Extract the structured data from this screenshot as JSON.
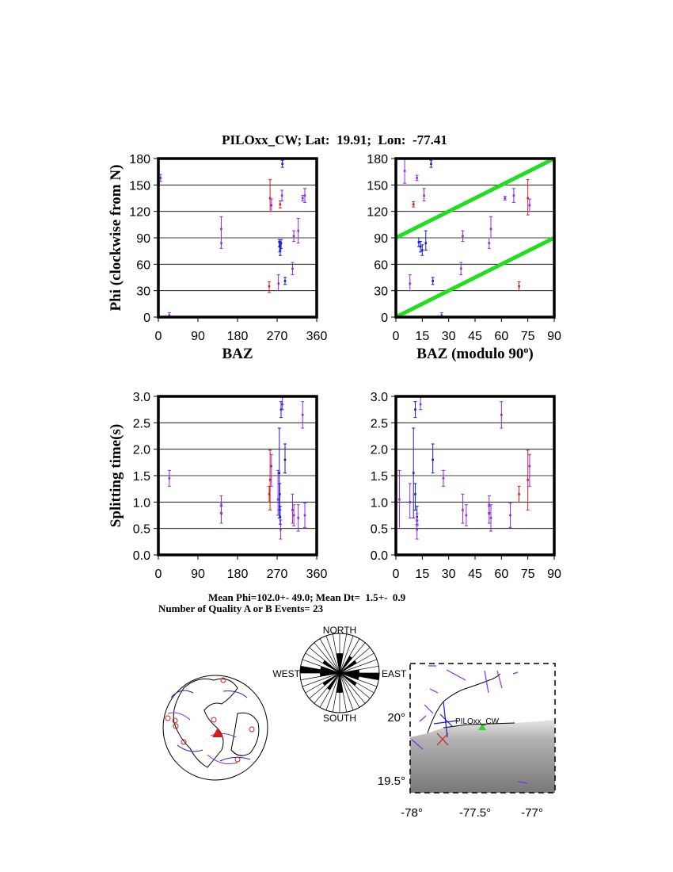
{
  "title": "PILOxx_CW; Lat:  19.91;  Lon:  -77.41",
  "stats": {
    "mean_line": "Mean Phi=102.0+- 49.0; Mean Dt=  1.5+-  0.9",
    "count_line": "Number of Quality A or B Events= 23"
  },
  "colors": {
    "purple": "#8a2be2",
    "blue": "#1a1acd",
    "red": "#d21e1e",
    "green": "#22dd22",
    "grid": "#000000"
  },
  "chart_data": [
    {
      "id": "phi_baz",
      "type": "scatter",
      "xlabel": "BAZ",
      "ylabel": "Phi (clockwise from N)",
      "xlim": [
        0,
        360
      ],
      "ylim": [
        0,
        180
      ],
      "xticks": [
        "0",
        "90",
        "180",
        "270",
        "360"
      ],
      "yticks": [
        "0",
        "30",
        "60",
        "90",
        "120",
        "150",
        "180"
      ],
      "points": [
        {
          "x": 5,
          "y": 158,
          "lo": 154,
          "hi": 162,
          "c": "purple"
        },
        {
          "x": 25,
          "y": 2,
          "lo": 0,
          "hi": 5,
          "c": "purple"
        },
        {
          "x": 143,
          "y": 84,
          "lo": 78,
          "hi": 90,
          "c": "purple"
        },
        {
          "x": 143,
          "y": 100,
          "lo": 90,
          "hi": 114,
          "c": "purple"
        },
        {
          "x": 252,
          "y": 35,
          "lo": 28,
          "hi": 40,
          "c": "red"
        },
        {
          "x": 254,
          "y": 135,
          "lo": 120,
          "hi": 156,
          "c": "red"
        },
        {
          "x": 257,
          "y": 127,
          "lo": 120,
          "hi": 134,
          "c": "purple"
        },
        {
          "x": 273,
          "y": 38,
          "lo": 30,
          "hi": 48,
          "c": "purple"
        },
        {
          "x": 277,
          "y": 128,
          "lo": 124,
          "hi": 132,
          "c": "red"
        },
        {
          "x": 275,
          "y": 85,
          "lo": 80,
          "hi": 88,
          "c": "blue"
        },
        {
          "x": 276,
          "y": 80,
          "lo": 74,
          "hi": 86,
          "c": "blue"
        },
        {
          "x": 277,
          "y": 76,
          "lo": 70,
          "hi": 82,
          "c": "blue"
        },
        {
          "x": 279,
          "y": 84,
          "lo": 78,
          "hi": 88,
          "c": "blue"
        },
        {
          "x": 281,
          "y": 138,
          "lo": 132,
          "hi": 144,
          "c": "purple"
        },
        {
          "x": 282,
          "y": 174,
          "lo": 170,
          "hi": 178,
          "c": "blue"
        },
        {
          "x": 288,
          "y": 41,
          "lo": 37,
          "hi": 45,
          "c": "blue"
        },
        {
          "x": 305,
          "y": 55,
          "lo": 48,
          "hi": 62,
          "c": "purple"
        },
        {
          "x": 308,
          "y": 92,
          "lo": 86,
          "hi": 98,
          "c": "purple"
        },
        {
          "x": 318,
          "y": 98,
          "lo": 84,
          "hi": 112,
          "c": "purple"
        },
        {
          "x": 328,
          "y": 135,
          "lo": 132,
          "hi": 138,
          "c": "purple"
        },
        {
          "x": 333,
          "y": 138,
          "lo": 130,
          "hi": 146,
          "c": "purple"
        }
      ]
    },
    {
      "id": "phi_mod",
      "type": "scatter",
      "xlabel": "BAZ (modulo 90",
      "xlabel_sup": "o",
      "xlabel_end": ")",
      "ylabel": "",
      "xlim": [
        0,
        90
      ],
      "ylim": [
        0,
        180
      ],
      "xticks": [
        "0",
        "15",
        "30",
        "45",
        "60",
        "75",
        "90"
      ],
      "yticks": [
        "0",
        "30",
        "60",
        "90",
        "120",
        "150",
        "180"
      ],
      "lines": [
        {
          "x1": 0,
          "y1": 90,
          "x2": 90,
          "y2": 180
        },
        {
          "x1": 0,
          "y1": 0,
          "x2": 90,
          "y2": 90
        }
      ],
      "points": [
        {
          "x": 5,
          "y": 166,
          "lo": 152,
          "hi": 180,
          "c": "purple"
        },
        {
          "x": 12,
          "y": 158,
          "lo": 155,
          "hi": 161,
          "c": "purple"
        },
        {
          "x": 16,
          "y": 138,
          "lo": 132,
          "hi": 146,
          "c": "purple"
        },
        {
          "x": 20,
          "y": 174,
          "lo": 170,
          "hi": 178,
          "c": "blue"
        },
        {
          "x": 10,
          "y": 128,
          "lo": 125,
          "hi": 131,
          "c": "red"
        },
        {
          "x": 13,
          "y": 85,
          "lo": 80,
          "hi": 90,
          "c": "blue"
        },
        {
          "x": 14,
          "y": 80,
          "lo": 74,
          "hi": 86,
          "c": "blue"
        },
        {
          "x": 15,
          "y": 76,
          "lo": 70,
          "hi": 82,
          "c": "blue"
        },
        {
          "x": 17,
          "y": 84,
          "lo": 76,
          "hi": 98,
          "c": "blue"
        },
        {
          "x": 8,
          "y": 38,
          "lo": 30,
          "hi": 48,
          "c": "purple"
        },
        {
          "x": 21,
          "y": 41,
          "lo": 37,
          "hi": 45,
          "c": "blue"
        },
        {
          "x": 26,
          "y": 2,
          "lo": 0,
          "hi": 5,
          "c": "purple"
        },
        {
          "x": 37,
          "y": 55,
          "lo": 48,
          "hi": 62,
          "c": "purple"
        },
        {
          "x": 38,
          "y": 92,
          "lo": 86,
          "hi": 98,
          "c": "purple"
        },
        {
          "x": 53,
          "y": 84,
          "lo": 78,
          "hi": 90,
          "c": "purple"
        },
        {
          "x": 54,
          "y": 100,
          "lo": 90,
          "hi": 114,
          "c": "purple"
        },
        {
          "x": 62,
          "y": 135,
          "lo": 133,
          "hi": 137,
          "c": "purple"
        },
        {
          "x": 67,
          "y": 138,
          "lo": 130,
          "hi": 146,
          "c": "purple"
        },
        {
          "x": 70,
          "y": 35,
          "lo": 30,
          "hi": 40,
          "c": "red"
        },
        {
          "x": 75,
          "y": 135,
          "lo": 116,
          "hi": 156,
          "c": "red"
        },
        {
          "x": 76,
          "y": 127,
          "lo": 120,
          "hi": 134,
          "c": "purple"
        }
      ]
    },
    {
      "id": "dt_baz",
      "type": "scatter",
      "xlabel": "",
      "ylabel": "Splitting time(s)",
      "xlim": [
        0,
        360
      ],
      "ylim": [
        0,
        3
      ],
      "xticks": [
        "0",
        "90",
        "180",
        "270",
        "360"
      ],
      "yticks": [
        "0.0",
        "0.5",
        "1.0",
        "1.5",
        "2.0",
        "2.5",
        "3.0"
      ],
      "points": [
        {
          "x": 25,
          "y": 1.45,
          "lo": 1.3,
          "hi": 1.6,
          "c": "purple"
        },
        {
          "x": 143,
          "y": 0.95,
          "lo": 0.8,
          "hi": 1.12,
          "c": "purple"
        },
        {
          "x": 143,
          "y": 0.78,
          "lo": 0.6,
          "hi": 0.92,
          "c": "purple"
        },
        {
          "x": 252,
          "y": 1.15,
          "lo": 1.0,
          "hi": 1.3,
          "c": "red"
        },
        {
          "x": 254,
          "y": 1.42,
          "lo": 0.85,
          "hi": 1.98,
          "c": "red"
        },
        {
          "x": 257,
          "y": 1.68,
          "lo": 1.3,
          "hi": 1.9,
          "c": "purple"
        },
        {
          "x": 272,
          "y": 1.05,
          "lo": 0.75,
          "hi": 1.6,
          "c": "purple"
        },
        {
          "x": 275,
          "y": 1.55,
          "lo": 0.7,
          "hi": 2.4,
          "c": "blue"
        },
        {
          "x": 276,
          "y": 1.15,
          "lo": 0.85,
          "hi": 1.35,
          "c": "blue"
        },
        {
          "x": 277,
          "y": 0.72,
          "lo": 0.58,
          "hi": 0.92,
          "c": "blue"
        },
        {
          "x": 278,
          "y": 0.48,
          "lo": 0.3,
          "hi": 0.66,
          "c": "purple"
        },
        {
          "x": 279,
          "y": 2.75,
          "lo": 2.6,
          "hi": 2.9,
          "c": "blue"
        },
        {
          "x": 282,
          "y": 2.85,
          "lo": 2.75,
          "hi": 2.98,
          "c": "purple"
        },
        {
          "x": 288,
          "y": 1.8,
          "lo": 1.55,
          "hi": 2.1,
          "c": "blue"
        },
        {
          "x": 305,
          "y": 0.85,
          "lo": 0.6,
          "hi": 1.15,
          "c": "purple"
        },
        {
          "x": 308,
          "y": 0.75,
          "lo": 0.55,
          "hi": 0.95,
          "c": "purple"
        },
        {
          "x": 318,
          "y": 0.7,
          "lo": 0.45,
          "hi": 0.95,
          "c": "purple"
        },
        {
          "x": 328,
          "y": 2.65,
          "lo": 2.4,
          "hi": 2.9,
          "c": "purple"
        },
        {
          "x": 333,
          "y": 0.75,
          "lo": 0.52,
          "hi": 0.98,
          "c": "purple"
        }
      ]
    },
    {
      "id": "dt_mod",
      "type": "scatter",
      "xlabel": "",
      "ylabel": "",
      "xlim": [
        0,
        90
      ],
      "ylim": [
        0,
        3
      ],
      "xticks": [
        "0",
        "15",
        "30",
        "45",
        "60",
        "75",
        "90"
      ],
      "yticks": [
        "0.0",
        "0.5",
        "1.0",
        "1.5",
        "2.0",
        "2.5",
        "3.0"
      ],
      "points": [
        {
          "x": 2,
          "y": 1.05,
          "lo": 0.5,
          "hi": 1.6,
          "c": "purple"
        },
        {
          "x": 8,
          "y": 1.0,
          "lo": 0.7,
          "hi": 1.35,
          "c": "purple"
        },
        {
          "x": 10,
          "y": 1.55,
          "lo": 0.7,
          "hi": 2.4,
          "c": "blue"
        },
        {
          "x": 11,
          "y": 1.15,
          "lo": 0.85,
          "hi": 1.35,
          "c": "blue"
        },
        {
          "x": 11,
          "y": 2.75,
          "lo": 2.6,
          "hi": 2.9,
          "c": "blue"
        },
        {
          "x": 12,
          "y": 0.72,
          "lo": 0.58,
          "hi": 0.92,
          "c": "blue"
        },
        {
          "x": 12,
          "y": 0.65,
          "lo": 0.55,
          "hi": 0.78,
          "c": "purple"
        },
        {
          "x": 12,
          "y": 0.48,
          "lo": 0.3,
          "hi": 0.66,
          "c": "purple"
        },
        {
          "x": 14,
          "y": 2.85,
          "lo": 2.75,
          "hi": 2.98,
          "c": "purple"
        },
        {
          "x": 21,
          "y": 1.8,
          "lo": 1.55,
          "hi": 2.1,
          "c": "blue"
        },
        {
          "x": 27,
          "y": 1.45,
          "lo": 1.3,
          "hi": 1.6,
          "c": "purple"
        },
        {
          "x": 38,
          "y": 0.85,
          "lo": 0.6,
          "hi": 1.15,
          "c": "purple"
        },
        {
          "x": 40,
          "y": 0.75,
          "lo": 0.55,
          "hi": 0.95,
          "c": "purple"
        },
        {
          "x": 53,
          "y": 0.95,
          "lo": 0.8,
          "hi": 1.12,
          "c": "purple"
        },
        {
          "x": 53,
          "y": 0.78,
          "lo": 0.6,
          "hi": 0.92,
          "c": "purple"
        },
        {
          "x": 54,
          "y": 0.7,
          "lo": 0.45,
          "hi": 0.95,
          "c": "purple"
        },
        {
          "x": 60,
          "y": 2.65,
          "lo": 2.4,
          "hi": 2.9,
          "c": "purple"
        },
        {
          "x": 65,
          "y": 0.75,
          "lo": 0.52,
          "hi": 0.98,
          "c": "purple"
        },
        {
          "x": 70,
          "y": 1.15,
          "lo": 1.0,
          "hi": 1.3,
          "c": "red"
        },
        {
          "x": 75,
          "y": 1.42,
          "lo": 0.85,
          "hi": 1.98,
          "c": "red"
        },
        {
          "x": 76,
          "y": 1.68,
          "lo": 1.3,
          "hi": 1.9,
          "c": "purple"
        }
      ]
    }
  ],
  "rose": {
    "labels": {
      "north": "NORTH",
      "south": "SOUTH",
      "east": "EAST",
      "west": "WEST"
    },
    "bins_deg_counts": [
      1,
      0,
      0,
      1,
      0,
      1,
      0,
      0,
      1,
      2,
      1,
      0,
      1,
      0,
      0,
      0,
      0,
      1
    ]
  },
  "map": {
    "station_label": "PILOxx_CW",
    "lat_labels": [
      "20°",
      "19.5°"
    ],
    "lon_labels": [
      "-78°",
      "-77.5°",
      "-77°"
    ]
  }
}
